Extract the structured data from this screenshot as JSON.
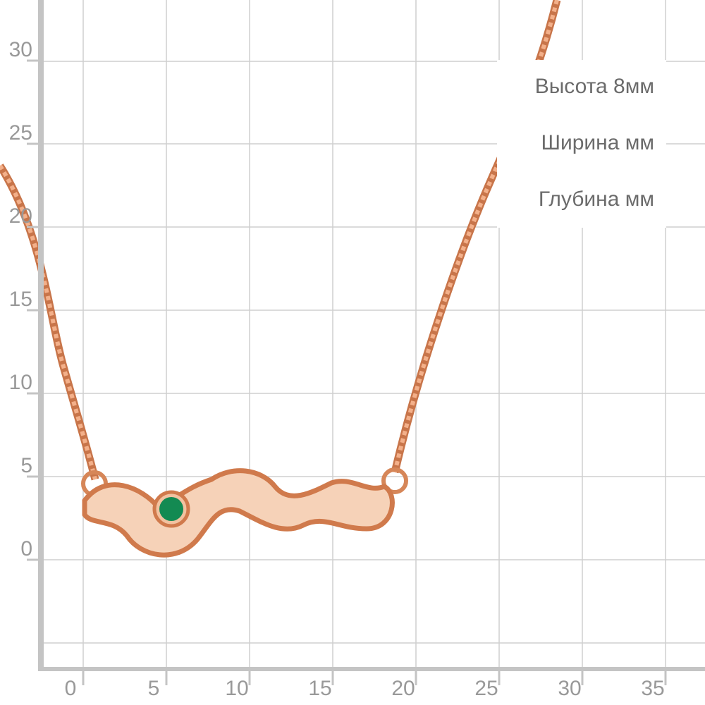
{
  "y_axis": {
    "ticks": [
      0,
      5,
      10,
      15,
      20,
      25,
      30
    ]
  },
  "x_axis": {
    "ticks": [
      0,
      5,
      10,
      15,
      20,
      25,
      30,
      35
    ]
  },
  "info": {
    "height": "Высота  8мм",
    "width": "Ширина мм",
    "depth": "Глубина мм"
  }
}
